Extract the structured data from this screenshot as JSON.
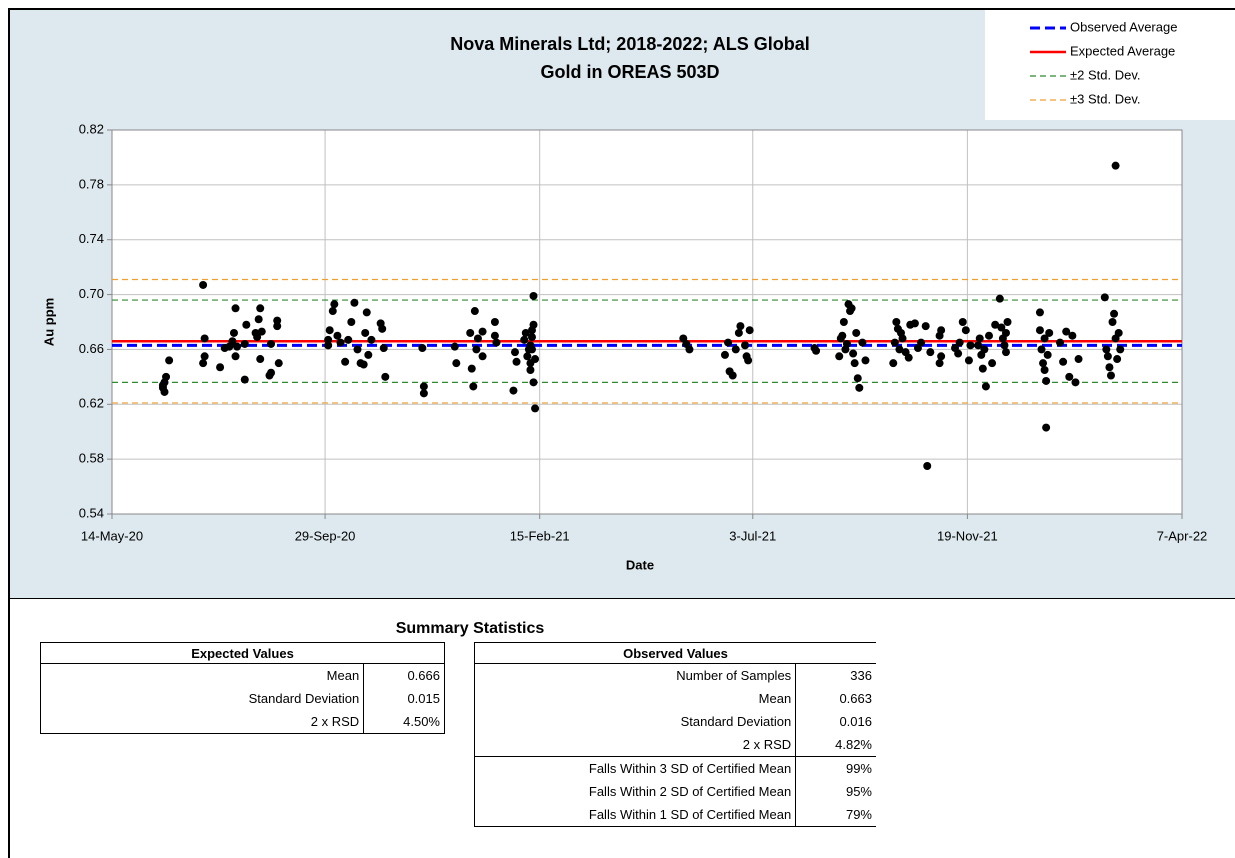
{
  "chart_data": {
    "type": "scatter",
    "title": [
      "Nova Minerals Ltd; 2018-2022; ALS Global",
      "Gold in OREAS 503D"
    ],
    "x_label": "Date",
    "y_label": "Au ppm",
    "xlim": [
      "2020-05-14",
      "2022-04-07"
    ],
    "xticks": [
      {
        "value": "2020-05-14",
        "label": "14-May-20"
      },
      {
        "value": "2020-09-29",
        "label": "29-Sep-20"
      },
      {
        "value": "2021-02-15",
        "label": "15-Feb-21"
      },
      {
        "value": "2021-07-03",
        "label": "3-Jul-21"
      },
      {
        "value": "2021-11-19",
        "label": "19-Nov-21"
      },
      {
        "value": "2022-04-07",
        "label": "7-Apr-22"
      }
    ],
    "ylim": [
      0.54,
      0.82
    ],
    "yticks": [
      {
        "value": 0.54,
        "label": "0.54"
      },
      {
        "value": 0.58,
        "label": "0.58"
      },
      {
        "value": 0.62,
        "label": "0.62"
      },
      {
        "value": 0.66,
        "label": "0.66"
      },
      {
        "value": 0.7,
        "label": "0.70"
      },
      {
        "value": 0.74,
        "label": "0.74"
      },
      {
        "value": 0.78,
        "label": "0.78"
      },
      {
        "value": 0.82,
        "label": "0.82"
      }
    ],
    "grid": true,
    "color": "#000000",
    "legend": "upper right",
    "reference_lines": [
      {
        "name": "Observed Average",
        "color": "#0000ff",
        "style": "dashed",
        "values": [
          0.663
        ]
      },
      {
        "name": "Expected Average",
        "color": "#ff0000",
        "style": "solid",
        "values": [
          0.666
        ]
      },
      {
        "name": "±2 Std. Dev.",
        "color": "#2e8b2e",
        "style": "dashed",
        "values": [
          0.636,
          0.696
        ]
      },
      {
        "name": "±3 Std. Dev.",
        "color": "#f0a030",
        "style": "dashed",
        "values": [
          0.621,
          0.711
        ]
      }
    ],
    "x": [
      "2020-06-16",
      "2020-06-17",
      "2020-06-17",
      "2020-06-18",
      "2020-06-20",
      "2020-06-16",
      "2020-07-12",
      "2020-07-13",
      "2020-07-13",
      "2020-07-12",
      "2020-07-23",
      "2020-07-26",
      "2020-07-29",
      "2020-07-31",
      "2020-08-01",
      "2020-08-02",
      "2020-08-02",
      "2020-08-03",
      "2020-08-08",
      "2020-08-08",
      "2020-08-09",
      "2020-08-15",
      "2020-08-16",
      "2020-08-17",
      "2020-08-18",
      "2020-08-18",
      "2020-08-19",
      "2020-08-24",
      "2020-08-25",
      "2020-08-25",
      "2020-08-29",
      "2020-08-29",
      "2020-08-30",
      "2020-10-01",
      "2020-10-01",
      "2020-10-02",
      "2020-10-04",
      "2020-10-05",
      "2020-10-07",
      "2020-10-09",
      "2020-10-12",
      "2020-10-14",
      "2020-10-16",
      "2020-10-18",
      "2020-10-20",
      "2020-10-22",
      "2020-10-24",
      "2020-10-25",
      "2020-10-26",
      "2020-10-27",
      "2020-10-29",
      "2020-11-04",
      "2020-11-05",
      "2020-11-07",
      "2020-11-06",
      "2020-12-01",
      "2020-12-02",
      "2020-12-02",
      "2020-12-22",
      "2020-12-23",
      "2021-01-01",
      "2021-01-02",
      "2021-01-03",
      "2021-01-04",
      "2021-01-05",
      "2021-01-06",
      "2021-01-09",
      "2021-01-09",
      "2021-01-17",
      "2021-01-17",
      "2021-01-18",
      "2021-01-29",
      "2021-01-30",
      "2021-01-31",
      "2021-02-05",
      "2021-02-06",
      "2021-02-07",
      "2021-02-08",
      "2021-02-09",
      "2021-02-11",
      "2021-02-09",
      "2021-02-09",
      "2021-02-10",
      "2021-02-10",
      "2021-02-11",
      "2021-02-11",
      "2021-02-12",
      "2021-02-10",
      "2021-02-12",
      "2021-05-19",
      "2021-05-21",
      "2021-05-23",
      "2021-06-15",
      "2021-06-17",
      "2021-06-18",
      "2021-06-20",
      "2021-06-22",
      "2021-06-24",
      "2021-06-25",
      "2021-06-28",
      "2021-06-29",
      "2021-06-30",
      "2021-07-01",
      "2021-08-12",
      "2021-08-13",
      "2021-08-28",
      "2021-08-29",
      "2021-08-30",
      "2021-08-31",
      "2021-09-01",
      "2021-09-02",
      "2021-09-03",
      "2021-09-04",
      "2021-09-05",
      "2021-09-06",
      "2021-09-07",
      "2021-09-08",
      "2021-09-09",
      "2021-09-10",
      "2021-09-12",
      "2021-09-14",
      "2021-10-02",
      "2021-10-03",
      "2021-10-04",
      "2021-10-05",
      "2021-10-06",
      "2021-10-07",
      "2021-10-08",
      "2021-10-10",
      "2021-10-12",
      "2021-10-13",
      "2021-10-16",
      "2021-10-18",
      "2021-10-20",
      "2021-10-23",
      "2021-10-26",
      "2021-10-24",
      "2021-11-01",
      "2021-11-01",
      "2021-11-02",
      "2021-11-02",
      "2021-11-11",
      "2021-11-13",
      "2021-11-14",
      "2021-11-16",
      "2021-11-18",
      "2021-11-20",
      "2021-11-21",
      "2021-11-26",
      "2021-11-27",
      "2021-11-28",
      "2021-11-29",
      "2021-11-30",
      "2021-12-01",
      "2021-12-03",
      "2021-12-05",
      "2021-12-07",
      "2021-12-10",
      "2021-12-11",
      "2021-12-12",
      "2021-12-13",
      "2021-12-14",
      "2021-12-14",
      "2021-12-15",
      "2022-01-05",
      "2022-01-05",
      "2022-01-06",
      "2022-01-07",
      "2022-01-08",
      "2022-01-08",
      "2022-01-09",
      "2022-01-09",
      "2022-01-10",
      "2022-01-11",
      "2022-01-18",
      "2022-01-20",
      "2022-01-22",
      "2022-01-24",
      "2022-01-26",
      "2022-01-28",
      "2022-01-30",
      "2022-02-16",
      "2022-02-17",
      "2022-02-18",
      "2022-02-19",
      "2022-02-20",
      "2022-02-21",
      "2022-02-22",
      "2022-02-23",
      "2022-02-24",
      "2022-02-25",
      "2022-02-23",
      "2022-02-26"
    ],
    "values": [
      0.632,
      0.636,
      0.629,
      0.64,
      0.652,
      0.634,
      0.707,
      0.668,
      0.655,
      0.65,
      0.647,
      0.661,
      0.662,
      0.666,
      0.672,
      0.655,
      0.69,
      0.662,
      0.638,
      0.664,
      0.678,
      0.672,
      0.669,
      0.682,
      0.69,
      0.653,
      0.673,
      0.641,
      0.643,
      0.664,
      0.681,
      0.677,
      0.65,
      0.663,
      0.667,
      0.674,
      0.688,
      0.693,
      0.67,
      0.665,
      0.651,
      0.667,
      0.68,
      0.694,
      0.66,
      0.65,
      0.649,
      0.672,
      0.687,
      0.656,
      0.667,
      0.679,
      0.675,
      0.64,
      0.661,
      0.661,
      0.633,
      0.628,
      0.662,
      0.65,
      0.672,
      0.646,
      0.633,
      0.688,
      0.66,
      0.668,
      0.655,
      0.673,
      0.68,
      0.67,
      0.665,
      0.63,
      0.658,
      0.651,
      0.667,
      0.672,
      0.655,
      0.66,
      0.65,
      0.678,
      0.663,
      0.645,
      0.669,
      0.674,
      0.699,
      0.636,
      0.617,
      0.66,
      0.653,
      0.668,
      0.664,
      0.66,
      0.656,
      0.665,
      0.644,
      0.641,
      0.66,
      0.672,
      0.677,
      0.663,
      0.655,
      0.652,
      0.674,
      0.661,
      0.659,
      0.655,
      0.668,
      0.67,
      0.68,
      0.66,
      0.664,
      0.693,
      0.688,
      0.69,
      0.657,
      0.65,
      0.672,
      0.639,
      0.632,
      0.665,
      0.652,
      0.65,
      0.665,
      0.68,
      0.675,
      0.66,
      0.672,
      0.668,
      0.658,
      0.654,
      0.678,
      0.679,
      0.661,
      0.665,
      0.677,
      0.658,
      0.575,
      0.67,
      0.65,
      0.655,
      0.674,
      0.661,
      0.657,
      0.665,
      0.68,
      0.674,
      0.652,
      0.663,
      0.663,
      0.668,
      0.656,
      0.646,
      0.66,
      0.633,
      0.67,
      0.65,
      0.678,
      0.697,
      0.676,
      0.668,
      0.663,
      0.658,
      0.672,
      0.68,
      0.687,
      0.674,
      0.66,
      0.65,
      0.645,
      0.668,
      0.637,
      0.603,
      0.656,
      0.672,
      0.665,
      0.651,
      0.673,
      0.64,
      0.67,
      0.636,
      0.653,
      0.698,
      0.66,
      0.655,
      0.647,
      0.641,
      0.68,
      0.686,
      0.668,
      0.653,
      0.672,
      0.794,
      0.66
    ]
  },
  "summary": {
    "title": "Summary Statistics",
    "expected": {
      "header": "Expected Values",
      "rows": [
        [
          "Mean",
          "0.666"
        ],
        [
          "Standard Deviation",
          "0.015"
        ],
        [
          "2 x RSD",
          "4.50%"
        ]
      ]
    },
    "observed": {
      "header": "Observed Values",
      "rows": [
        [
          "Number of Samples",
          "336"
        ],
        [
          "Mean",
          "0.663"
        ],
        [
          "Standard Deviation",
          "0.016"
        ],
        [
          "2 x RSD",
          "4.82%"
        ],
        [
          "Falls Within 3 SD of Certified Mean",
          "99%"
        ],
        [
          "Falls Within 2 SD of Certified Mean",
          "95%"
        ],
        [
          "Falls Within 1 SD of Certified Mean",
          "79%"
        ]
      ]
    }
  }
}
